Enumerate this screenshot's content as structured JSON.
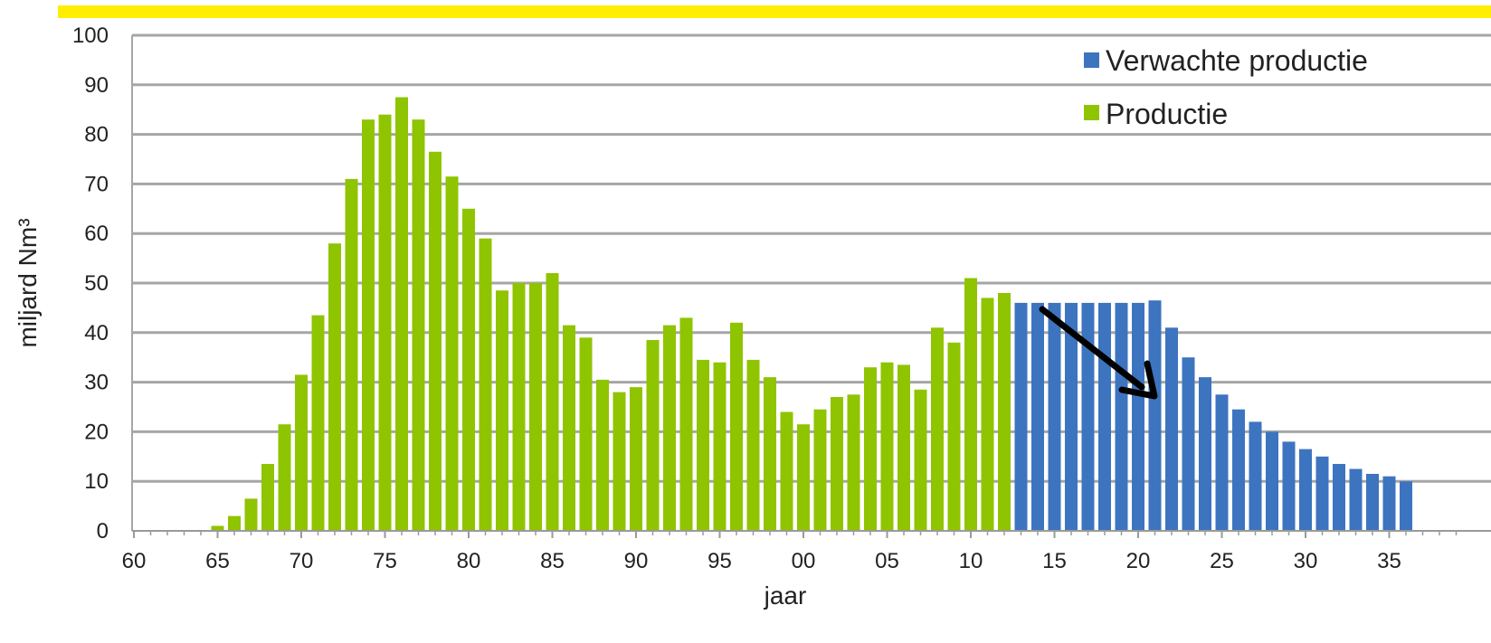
{
  "chart_data": {
    "type": "bar",
    "xlabel": "jaar",
    "ylabel": "miljard Nm³",
    "ylim": [
      0,
      100
    ],
    "yticks": [
      "0",
      "10",
      "20",
      "30",
      "40",
      "50",
      "60",
      "70",
      "80",
      "90",
      "100"
    ],
    "xticks": [
      {
        "year": 1960,
        "label": "60"
      },
      {
        "year": 1965,
        "label": "65"
      },
      {
        "year": 1970,
        "label": "70"
      },
      {
        "year": 1975,
        "label": "75"
      },
      {
        "year": 1980,
        "label": "80"
      },
      {
        "year": 1985,
        "label": "85"
      },
      {
        "year": 1990,
        "label": "90"
      },
      {
        "year": 1995,
        "label": "95"
      },
      {
        "year": 2000,
        "label": "00"
      },
      {
        "year": 2005,
        "label": "05"
      },
      {
        "year": 2010,
        "label": "10"
      },
      {
        "year": 2015,
        "label": "15"
      },
      {
        "year": 2020,
        "label": "20"
      },
      {
        "year": 2025,
        "label": "25"
      },
      {
        "year": 2030,
        "label": "30"
      },
      {
        "year": 2035,
        "label": "35"
      }
    ],
    "grid": true,
    "legend_position": "top-right",
    "legend": [
      {
        "label": "Verwachte productie",
        "color": "#3d74bf"
      },
      {
        "label": "Productie",
        "color": "#8fc400"
      }
    ],
    "series": [
      {
        "name": "Productie",
        "color": "#8fc400",
        "x": [
          1965,
          1966,
          1967,
          1968,
          1969,
          1970,
          1971,
          1972,
          1973,
          1974,
          1975,
          1976,
          1977,
          1978,
          1979,
          1980,
          1981,
          1982,
          1983,
          1984,
          1985,
          1986,
          1987,
          1988,
          1989,
          1990,
          1991,
          1992,
          1993,
          1994,
          1995,
          1996,
          1997,
          1998,
          1999,
          2000,
          2001,
          2002,
          2003,
          2004,
          2005,
          2006,
          2007,
          2008,
          2009,
          2010,
          2011,
          2012
        ],
        "values": [
          1,
          3,
          6.5,
          13.5,
          21.5,
          31.5,
          43.5,
          58,
          71,
          83,
          84,
          87.5,
          83,
          76.5,
          71.5,
          65,
          59,
          48.5,
          50,
          50,
          52,
          41.5,
          39,
          30.5,
          28,
          29,
          38.5,
          41.5,
          43,
          34.5,
          34,
          42,
          34.5,
          31,
          24,
          21.5,
          24.5,
          27,
          27.5,
          33,
          34,
          33.5,
          28.5,
          41,
          38,
          51,
          47,
          48
        ]
      },
      {
        "name": "Verwachte productie",
        "color": "#3d74bf",
        "x": [
          2013,
          2014,
          2015,
          2016,
          2017,
          2018,
          2019,
          2020,
          2021,
          2022,
          2023,
          2024,
          2025,
          2026,
          2027,
          2028,
          2029,
          2030,
          2031,
          2032,
          2033,
          2034,
          2035,
          2036
        ],
        "values": [
          46,
          46,
          46,
          46,
          46,
          46,
          46,
          46,
          46.5,
          41,
          35,
          31,
          27.5,
          24.5,
          22,
          20,
          18,
          16.5,
          15,
          13.5,
          12.5,
          11.5,
          11,
          10
        ]
      }
    ]
  }
}
